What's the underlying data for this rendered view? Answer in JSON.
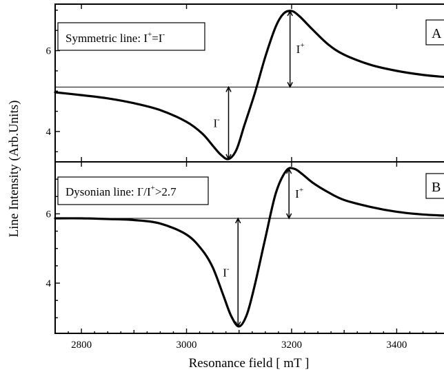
{
  "chart_data": [
    {
      "type": "line",
      "panel_label": "A",
      "annotation": "Symmetric line: I",
      "annotation_sup1": "+",
      "annotation_mid": "=I",
      "annotation_sup2": "-",
      "minus_label": "I",
      "minus_sup": "-",
      "plus_label": "I",
      "plus_sup": "+",
      "baseline": 5.1,
      "ylim": [
        3.25,
        7.15
      ],
      "yticks": [
        4,
        6
      ],
      "ytick_labels": [
        "4",
        "6"
      ],
      "minus_arrow_x": 3080,
      "plus_arrow_x": 3197,
      "series": [
        {
          "x": [
            2750,
            2800,
            2850,
            2900,
            2950,
            3000,
            3030,
            3050,
            3065,
            3080,
            3095,
            3110,
            3130,
            3150,
            3170,
            3185,
            3200,
            3215,
            3240,
            3270,
            3300,
            3350,
            3400,
            3450,
            3490
          ],
          "y": [
            4.97,
            4.9,
            4.82,
            4.7,
            4.53,
            4.24,
            3.95,
            3.65,
            3.43,
            3.32,
            3.55,
            4.15,
            4.95,
            5.85,
            6.6,
            6.92,
            6.98,
            6.85,
            6.52,
            6.15,
            5.9,
            5.65,
            5.5,
            5.4,
            5.35
          ]
        }
      ]
    },
    {
      "type": "line",
      "panel_label": "B",
      "annotation": "Dysonian line: I",
      "annotation_sup1": "-",
      "annotation_mid": "/I",
      "annotation_sup2": "+",
      "annotation_tail": ">2.7",
      "minus_label": "I",
      "minus_sup": "-",
      "plus_label": "I",
      "plus_sup": "+",
      "baseline": 5.87,
      "ylim": [
        2.55,
        7.5
      ],
      "yticks": [
        4,
        6
      ],
      "ytick_labels": [
        "4",
        "6"
      ],
      "minus_arrow_x": 3098,
      "plus_arrow_x": 3195,
      "series": [
        {
          "x": [
            2750,
            2800,
            2850,
            2900,
            2950,
            3000,
            3030,
            3050,
            3070,
            3085,
            3100,
            3115,
            3130,
            3150,
            3170,
            3190,
            3205,
            3220,
            3240,
            3270,
            3300,
            3350,
            3400,
            3450,
            3490
          ],
          "y": [
            5.87,
            5.87,
            5.85,
            5.82,
            5.72,
            5.4,
            4.95,
            4.45,
            3.65,
            3.05,
            2.75,
            3.1,
            3.95,
            5.3,
            6.6,
            7.25,
            7.3,
            7.15,
            6.9,
            6.62,
            6.4,
            6.2,
            6.06,
            5.98,
            5.95
          ]
        }
      ]
    }
  ],
  "xaxis": {
    "label": "Resonance field  [ mT ]",
    "ticks": [
      2800,
      3000,
      3200,
      3400
    ],
    "tick_labels": [
      "2800",
      "3000",
      "3200",
      "3400"
    ],
    "xlim": [
      2750,
      3490
    ]
  },
  "yaxis": {
    "label": "Line Intensity (Arb.Units)"
  }
}
